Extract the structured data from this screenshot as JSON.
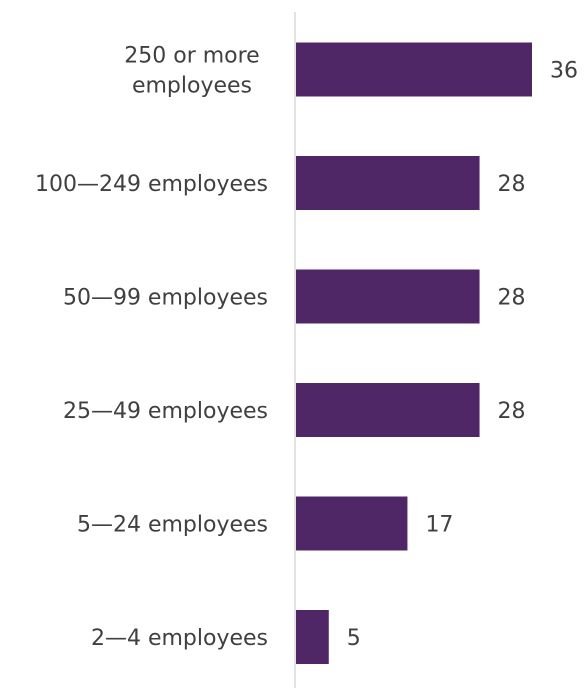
{
  "chart_data": {
    "type": "bar",
    "orientation": "horizontal",
    "categories": [
      [
        "250 or more",
        "employees"
      ],
      [
        "100—249 employees"
      ],
      [
        "50—99 employees"
      ],
      [
        "25—49 employees"
      ],
      [
        "5—24 employees"
      ],
      [
        "2—4 employees"
      ]
    ],
    "values": [
      36,
      28,
      28,
      28,
      17,
      5
    ],
    "title": "",
    "xlabel": "",
    "ylabel": "",
    "grid": false,
    "legend": "none",
    "bar_color": "#4f2767",
    "axis_color": "#d9d9d9",
    "text_color": "#404040"
  }
}
